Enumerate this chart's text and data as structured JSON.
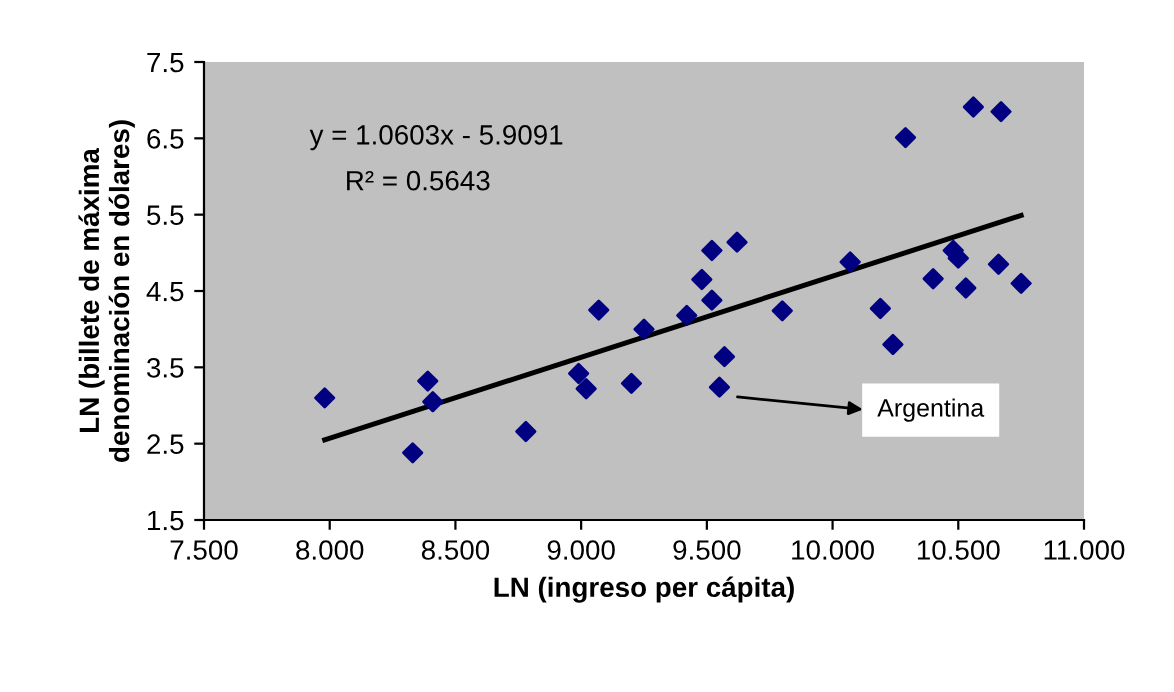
{
  "chart_data": {
    "type": "scatter",
    "xlabel": "LN (ingreso per cápita)",
    "ylabel": "LN (billete de máxima\ndenominación en dólares)",
    "x": [
      7.98,
      8.33,
      8.39,
      8.41,
      8.78,
      8.99,
      9.02,
      9.07,
      9.2,
      9.25,
      9.42,
      9.48,
      9.52,
      9.52,
      9.62,
      9.57,
      9.55,
      9.8,
      10.07,
      10.19,
      10.24,
      10.29,
      10.4,
      10.48,
      10.5,
      10.53,
      10.56,
      10.67,
      10.66,
      10.75
    ],
    "series": [
      {
        "color": "#000080",
        "marker": "diamond",
        "values": [
          3.1,
          2.38,
          3.32,
          3.05,
          2.66,
          3.42,
          3.22,
          4.25,
          3.29,
          4.0,
          4.18,
          4.65,
          5.03,
          4.38,
          5.14,
          3.64,
          3.24,
          4.24,
          4.88,
          4.27,
          3.8,
          6.51,
          4.66,
          5.03,
          4.93,
          4.54,
          6.91,
          6.85,
          4.85,
          4.6
        ]
      },
      {
        "type": "line",
        "color": "#000000",
        "x": [
          7.98,
          10.75
        ],
        "values": [
          2.55,
          5.49
        ]
      }
    ],
    "annotations": [
      "y = 1.0603x - 5.9091",
      "R² = 0.5643",
      "Argentina"
    ],
    "xlim": [
      7.5,
      11.0
    ],
    "xticks": [
      {
        "value": 7.5,
        "label": "7.500"
      },
      {
        "value": 8.0,
        "label": "8.000"
      },
      {
        "value": 8.5,
        "label": "8.500"
      },
      {
        "value": 9.0,
        "label": "9.000"
      },
      {
        "value": 9.5,
        "label": "9.500"
      },
      {
        "value": 10.0,
        "label": "10.000"
      },
      {
        "value": 10.5,
        "label": "10.500"
      },
      {
        "value": 11.0,
        "label": "11.000"
      }
    ],
    "ylim": [
      1.5,
      7.5
    ],
    "yticks": [
      1.5,
      2.5,
      3.5,
      4.5,
      5.5,
      6.5,
      7.5
    ],
    "grid": false,
    "legend": false
  }
}
